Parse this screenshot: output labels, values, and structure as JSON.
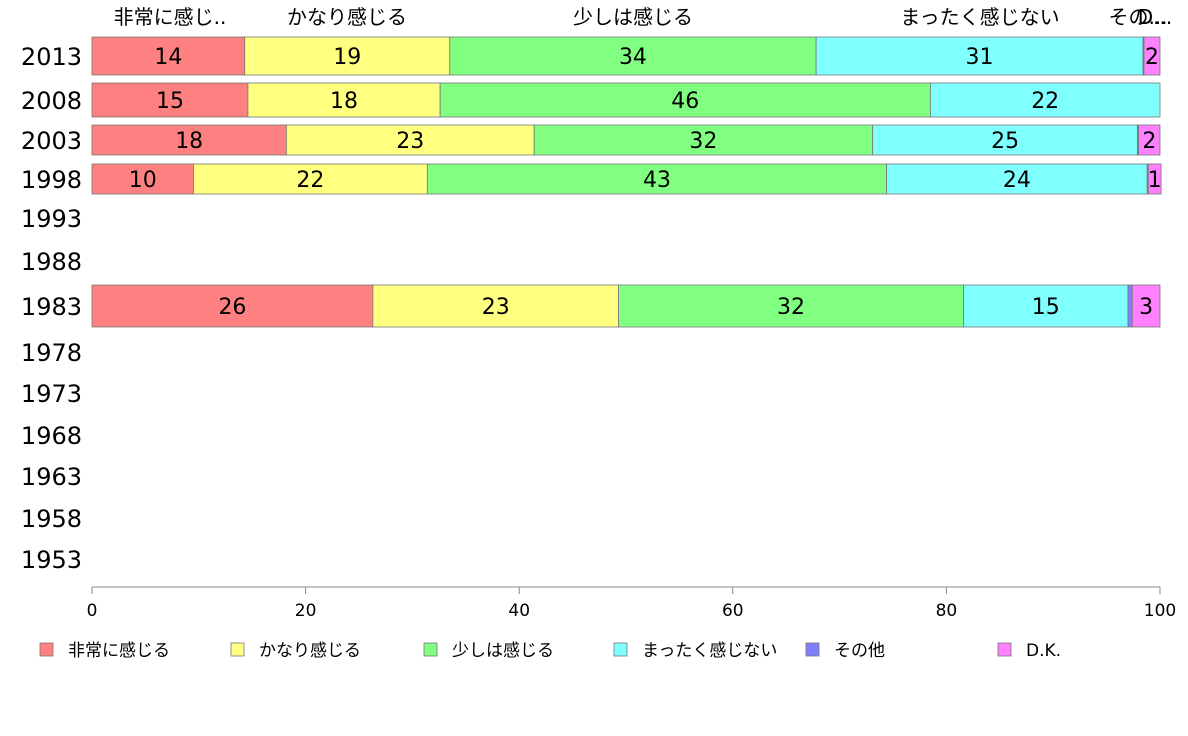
{
  "chart_data": {
    "type": "bar",
    "orientation": "horizontal",
    "stacked": true,
    "categories": [
      "2013",
      "2008",
      "2003",
      "1998",
      "1993",
      "1988",
      "1983",
      "1978",
      "1973",
      "1968",
      "1963",
      "1958",
      "1953"
    ],
    "series": [
      {
        "name": "非常に感じる",
        "color": "#ff8080",
        "values": [
          14.3,
          14.6,
          18.2,
          9.5,
          null,
          null,
          26.3,
          null,
          null,
          null,
          null,
          null,
          null
        ],
        "labels": [
          "14",
          "15",
          "18",
          "10",
          "",
          "",
          "26",
          "",
          "",
          "",
          "",
          "",
          ""
        ]
      },
      {
        "name": "かなり感じる",
        "color": "#ffff80",
        "values": [
          19.2,
          18.0,
          23.2,
          21.9,
          null,
          null,
          23.0,
          null,
          null,
          null,
          null,
          null,
          null
        ],
        "labels": [
          "19",
          "18",
          "23",
          "22",
          "",
          "",
          "23",
          "",
          "",
          "",
          "",
          "",
          ""
        ]
      },
      {
        "name": "少しは感じる",
        "color": "#80ff80",
        "values": [
          34.3,
          45.9,
          31.7,
          43.0,
          null,
          null,
          32.3,
          null,
          null,
          null,
          null,
          null,
          null
        ],
        "labels": [
          "34",
          "46",
          "32",
          "43",
          "",
          "",
          "32",
          "",
          "",
          "",
          "",
          "",
          ""
        ]
      },
      {
        "name": "まったく感じない",
        "color": "#80ffff",
        "values": [
          30.6,
          21.5,
          24.8,
          24.4,
          null,
          null,
          15.4,
          null,
          null,
          null,
          null,
          null,
          null
        ],
        "labels": [
          "31",
          "22",
          "25",
          "24",
          "",
          "",
          "15",
          "",
          "",
          "",
          "",
          "",
          ""
        ]
      },
      {
        "name": "その他",
        "color": "#8080ff",
        "values": [
          0.1,
          0.0,
          0.1,
          0.1,
          null,
          null,
          0.4,
          null,
          null,
          null,
          null,
          null,
          null
        ],
        "labels": [
          "",
          "",
          "",
          "",
          "",
          "",
          "",
          "",
          "",
          "",
          "",
          "",
          ""
        ]
      },
      {
        "name": "D.K.",
        "color": "#ff80ff",
        "values": [
          1.5,
          0.0,
          2.0,
          1.2,
          null,
          null,
          2.6,
          null,
          null,
          null,
          null,
          null,
          null
        ],
        "labels": [
          "2",
          "",
          "2",
          "1",
          "",
          "",
          "3",
          "",
          "",
          "",
          "",
          "",
          ""
        ]
      }
    ],
    "top_labels": [
      "非常に感じ..",
      "かなり感じる",
      "少しは感じる",
      "まったく感じない",
      "その...",
      "D..."
    ],
    "xlim": [
      0,
      100
    ],
    "xticks": [
      "0",
      "20",
      "40",
      "60",
      "80",
      "100"
    ],
    "legend": {
      "position": "bottom"
    }
  }
}
